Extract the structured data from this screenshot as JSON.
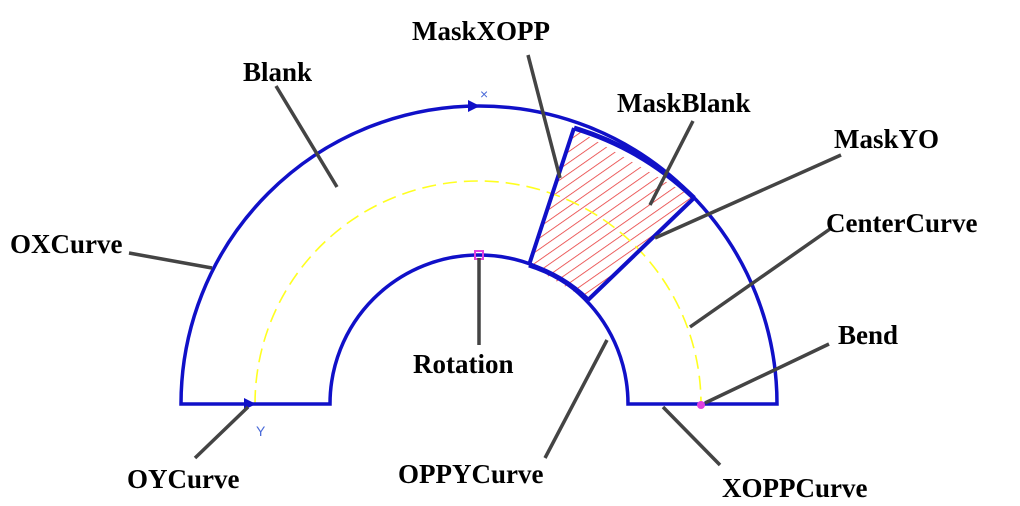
{
  "labels": {
    "mask_xopp": "MaskXOPP",
    "blank": "Blank",
    "mask_blank": "MaskBlank",
    "mask_yo": "MaskYO",
    "center_curve": "CenterCurve",
    "ox_curve": "OXCurve",
    "bend": "Bend",
    "rotation": "Rotation",
    "oy_curve": "OYCurve",
    "oppy_curve": "OPPYCurve",
    "xopp_curve": "XOPPCurve"
  },
  "axis_markers": {
    "x": "×",
    "y": "Y"
  },
  "colors": {
    "outline": "#1010c8",
    "hatch": "#e83a3a",
    "center_curve": "#ffff20",
    "point": "#e040e0",
    "leader": "#444444"
  }
}
